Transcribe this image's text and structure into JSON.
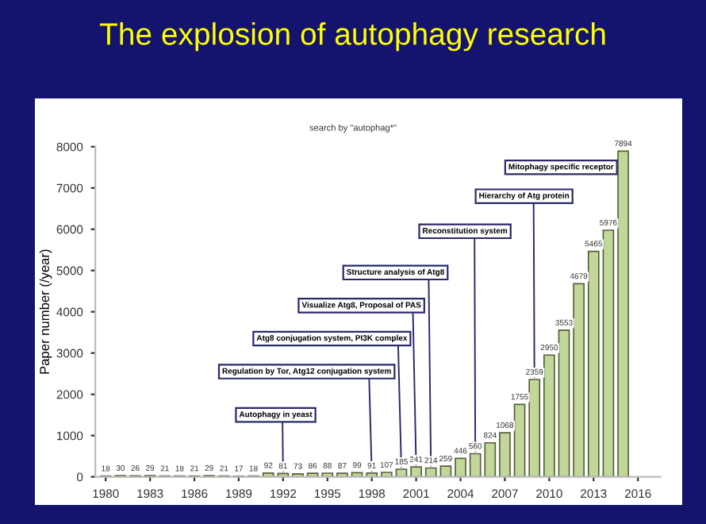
{
  "chart_data": {
    "type": "bar",
    "title": "The explosion of autophagy research",
    "subtitle": "search by \"autophag*\"",
    "ylabel": "Paper number (/year)",
    "x": [
      1980,
      1981,
      1982,
      1983,
      1984,
      1985,
      1986,
      1987,
      1988,
      1989,
      1990,
      1991,
      1992,
      1993,
      1994,
      1995,
      1996,
      1997,
      1998,
      1999,
      2000,
      2001,
      2002,
      2003,
      2004,
      2005,
      2006,
      2007,
      2008,
      2009,
      2010,
      2011,
      2012,
      2013,
      2014,
      2015
    ],
    "values": [
      18,
      30,
      26,
      29,
      21,
      18,
      21,
      29,
      21,
      17,
      18,
      92,
      81,
      73,
      86,
      88,
      87,
      99,
      91,
      107,
      185,
      241,
      214,
      259,
      446,
      560,
      824,
      1068,
      1755,
      2359,
      2950,
      3553,
      4679,
      5465,
      5976,
      7894
    ],
    "color": "#c4d79b",
    "xlim": [
      1979.3,
      2017.5
    ],
    "xticks": [
      1980,
      1983,
      1986,
      1989,
      1992,
      1995,
      1998,
      2001,
      2004,
      2007,
      2010,
      2013,
      2016
    ],
    "ylim": [
      0,
      8000
    ],
    "yticks": [
      0,
      1000,
      2000,
      3000,
      4000,
      5000,
      6000,
      7000,
      8000
    ],
    "data_labels": true,
    "grid": false,
    "annotations": [
      {
        "text": "Autophagy in yeast",
        "x": 1992,
        "y": 81
      },
      {
        "text": "Regulation by Tor, Atg12 conjugation system",
        "x": 1998,
        "y": 91
      },
      {
        "text": "Atg8 conjugation system, PI3K complex",
        "x": 2000,
        "y": 185
      },
      {
        "text": "Visualize Atg8, Proposal of PAS",
        "x": 2001,
        "y": 241
      },
      {
        "text": "Structure analysis of Atg8",
        "x": 2002,
        "y": 214
      },
      {
        "text": "Reconstitution system",
        "x": 2005,
        "y": 560
      },
      {
        "text": "Hierarchy of Atg protein",
        "x": 2009,
        "y": 2359
      },
      "Mitophagy specific receptor"
    ]
  }
}
